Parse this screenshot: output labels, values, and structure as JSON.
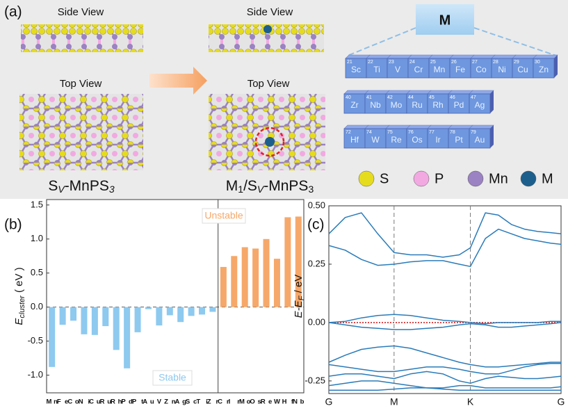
{
  "figure": {
    "panel_labels": [
      "(a)",
      "(b)",
      "(c)"
    ],
    "side_view": "Side View",
    "top_view": "Top View",
    "captions": [
      [
        "S",
        "V",
        "-MnPS",
        "3"
      ],
      [
        "M",
        "1",
        "/S",
        "V",
        "-MnPS",
        "3"
      ]
    ],
    "element_header": "M",
    "table": {
      "rows": [
        [
          {
            "number": 21,
            "symbol": "Sc"
          },
          {
            "number": 22,
            "symbol": "Ti"
          },
          {
            "number": 23,
            "symbol": "V"
          },
          {
            "number": 24,
            "symbol": "Cr"
          },
          {
            "number": 25,
            "symbol": "Mn"
          },
          {
            "number": 26,
            "symbol": "Fe"
          },
          {
            "number": 27,
            "symbol": "Co"
          },
          {
            "number": 28,
            "symbol": "Ni"
          },
          {
            "number": 29,
            "symbol": "Cu"
          },
          {
            "number": 30,
            "symbol": "Zn"
          }
        ],
        [
          {
            "number": 40,
            "symbol": "Zr"
          },
          {
            "number": 41,
            "symbol": "Nb"
          },
          {
            "number": 42,
            "symbol": "Mo"
          },
          {
            "number": 44,
            "symbol": "Ru"
          },
          {
            "number": 45,
            "symbol": "Rh"
          },
          {
            "number": 46,
            "symbol": "Pd"
          },
          {
            "number": 47,
            "symbol": "Ag"
          }
        ],
        [
          {
            "number": 72,
            "symbol": "Hf"
          },
          {
            "number": 74,
            "symbol": "W"
          },
          {
            "number": 75,
            "symbol": "Re"
          },
          {
            "number": 76,
            "symbol": "Os"
          },
          {
            "number": 77,
            "symbol": "Ir"
          },
          {
            "number": 78,
            "symbol": "Pt"
          },
          {
            "number": 79,
            "symbol": "Au"
          }
        ]
      ]
    },
    "legend": [
      {
        "label": "S",
        "color": "#e6dc1e"
      },
      {
        "label": "P",
        "color": "#f2a9e2"
      },
      {
        "label": "Mn",
        "color": "#9b82c2"
      },
      {
        "label": "M",
        "color": "#1d5f8c"
      }
    ]
  },
  "chart_data": [
    {
      "type": "bar",
      "ylabel": {
        "main": "E",
        "sub": "cluster",
        "rest": " ( eV )"
      },
      "categories": [
        "Mn",
        "Fe",
        "Co",
        "Ni",
        "Cu",
        "Ru",
        "Rh",
        "Pd",
        "Pt",
        "Au",
        "V",
        "Zn",
        "Ag",
        "Sc",
        "Ti",
        "Zr",
        "Cr",
        "Ir",
        "Mo",
        "Os",
        "Re",
        "W",
        "Hf",
        "Nb"
      ],
      "series": [
        {
          "name": "Stable",
          "color": "#8ec9ef",
          "values": [
            -0.88,
            -0.26,
            -0.2,
            -0.4,
            -0.41,
            -0.28,
            -0.63,
            -0.9,
            -0.37,
            -0.03,
            -0.27,
            -0.12,
            -0.22,
            -0.13,
            -0.11,
            -0.07,
            null,
            null,
            null,
            null,
            null,
            null,
            null,
            null
          ]
        },
        {
          "name": "Unstable",
          "color": "#f6a86a",
          "values": [
            null,
            null,
            null,
            null,
            null,
            null,
            null,
            null,
            null,
            null,
            null,
            null,
            null,
            null,
            null,
            null,
            0.59,
            0.75,
            0.88,
            0.86,
            1.0,
            0.71,
            1.32,
            1.33
          ]
        }
      ],
      "ylim": [
        -1.26,
        1.58
      ],
      "yticks": [
        {
          "value": -1,
          "label": "-1.0"
        },
        -0.5,
        {
          "value": 0,
          "label": "0.0"
        },
        0.5,
        {
          "value": 1,
          "label": "1.0"
        },
        1.5
      ],
      "reference_line": 0
    },
    {
      "type": "line",
      "ylabel": {
        "main": "E-E",
        "sub": "F",
        "rest": " / eV"
      },
      "color": "#2a7bb9",
      "x": [
        0,
        0.25,
        0.5,
        0.75,
        1,
        1.25,
        1.5,
        1.75,
        2,
        2.17,
        2.4,
        2.6,
        2.8,
        3,
        3.2,
        3.4,
        3.56
      ],
      "bands": [
        [
          0.38,
          0.45,
          0.47,
          0.38,
          0.3,
          0.29,
          0.29,
          0.28,
          0.29,
          0.32,
          0.47,
          0.46,
          0.42,
          0.4,
          0.39,
          0.385,
          0.38
        ],
        [
          0.33,
          0.31,
          0.27,
          0.245,
          0.25,
          0.26,
          0.265,
          0.265,
          0.25,
          0.24,
          0.36,
          0.4,
          0.38,
          0.36,
          0.35,
          0.34,
          0.335
        ],
        [
          0.0,
          0.005,
          0.02,
          0.03,
          0.035,
          0.03,
          0.02,
          0.01,
          0.005,
          0.0,
          -0.005,
          0.0,
          0.0,
          0.0,
          0.0,
          0.005,
          0.005
        ],
        [
          0.0,
          -0.01,
          -0.02,
          -0.025,
          -0.03,
          -0.03,
          -0.025,
          -0.02,
          -0.01,
          -0.005,
          -0.01,
          -0.02,
          -0.02,
          -0.015,
          -0.01,
          -0.005,
          0.0
        ],
        [
          -0.17,
          -0.14,
          -0.115,
          -0.105,
          -0.1,
          -0.11,
          -0.13,
          -0.15,
          -0.17,
          -0.18,
          -0.19,
          -0.19,
          -0.185,
          -0.18,
          -0.175,
          -0.17,
          -0.17
        ],
        [
          -0.18,
          -0.19,
          -0.2,
          -0.21,
          -0.21,
          -0.2,
          -0.19,
          -0.19,
          -0.2,
          -0.21,
          -0.22,
          -0.22,
          -0.205,
          -0.19,
          -0.18,
          -0.175,
          -0.175
        ],
        [
          -0.23,
          -0.22,
          -0.22,
          -0.23,
          -0.24,
          -0.22,
          -0.21,
          -0.22,
          -0.25,
          -0.26,
          -0.24,
          -0.23,
          -0.235,
          -0.24,
          -0.24,
          -0.235,
          -0.23
        ],
        [
          -0.27,
          -0.26,
          -0.25,
          -0.25,
          -0.26,
          -0.27,
          -0.28,
          -0.28,
          -0.27,
          -0.27,
          -0.28,
          -0.28,
          -0.28,
          -0.28,
          -0.28,
          -0.28,
          -0.275
        ],
        [
          -0.29,
          -0.29,
          -0.29,
          -0.29,
          -0.285,
          -0.28,
          -0.28,
          -0.285,
          -0.29,
          -0.29,
          -0.29,
          -0.29,
          -0.29,
          -0.29,
          -0.29,
          -0.29,
          -0.29
        ]
      ],
      "xlim": [
        0,
        3.56
      ],
      "xticks": [
        {
          "value": 0,
          "label": "G"
        },
        {
          "value": 1,
          "label": "M"
        },
        {
          "value": 2.17,
          "label": "K"
        },
        {
          "value": 3.56,
          "label": "G"
        }
      ],
      "ylim": [
        -0.304,
        0.5
      ],
      "yticks": [
        {
          "value": 0.5,
          "label": "0.50"
        },
        0.25,
        {
          "value": 0,
          "label": "0.00"
        },
        -0.25
      ],
      "reference_line": 0
    }
  ]
}
